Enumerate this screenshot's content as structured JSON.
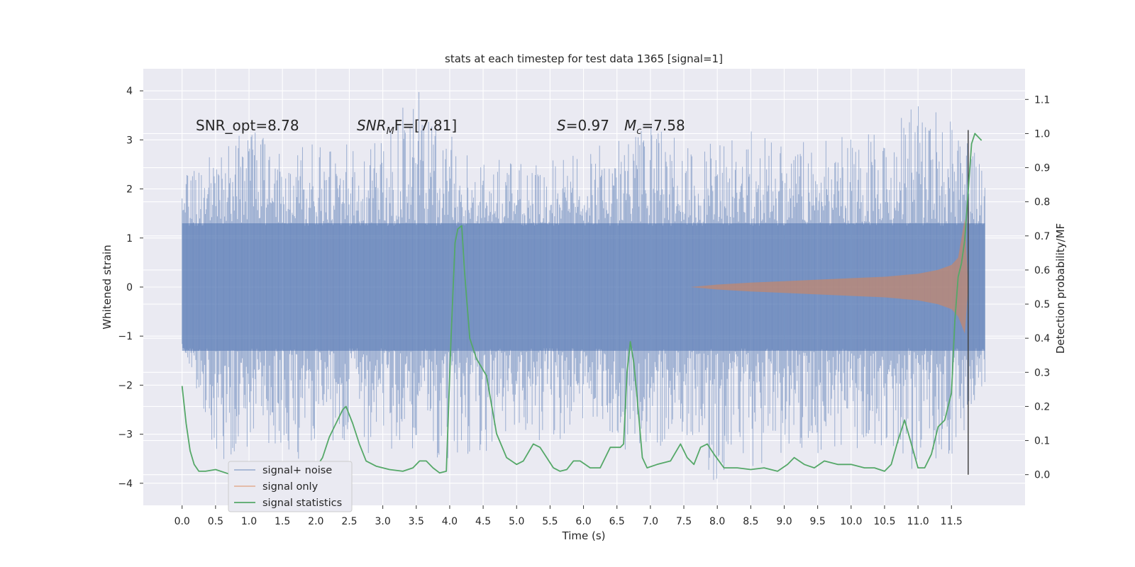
{
  "chart_data": {
    "type": "line",
    "title": "stats at each timestep for test data 1365 [signal=1]",
    "xlabel": "Time (s)",
    "ylabel": "Whitened strain",
    "ylabel_right": "Detection probability/MF",
    "xlim": [
      -0.58,
      12.6
    ],
    "ylim": [
      -4.45,
      4.45
    ],
    "ylim_right": [
      -0.09,
      1.19
    ],
    "x_ticks": [
      "0.0",
      "0.5",
      "1.0",
      "1.5",
      "2.0",
      "2.5",
      "3.0",
      "3.5",
      "4.0",
      "4.5",
      "5.0",
      "5.5",
      "6.0",
      "6.5",
      "7.0",
      "7.5",
      "8.0",
      "8.5",
      "9.0",
      "9.5",
      "10.0",
      "10.5",
      "11.0",
      "11.5"
    ],
    "y_ticks": [
      "4",
      "3",
      "2",
      "1",
      "0",
      "−1",
      "−2",
      "−3",
      "−4"
    ],
    "y_ticks_right": [
      "1.1",
      "1.0",
      "0.9",
      "0.8",
      "0.7",
      "0.6",
      "0.5",
      "0.4",
      "0.3",
      "0.2",
      "0.1",
      "0.0"
    ],
    "grid": true,
    "legend_position": "bottom-left",
    "annotations": {
      "snr_opt": "SNR_opt=8.78",
      "snr_mf_main": "SNR",
      "snr_mf_sub": "M",
      "snr_mf_tail": "F=[7.81]",
      "s_label": "S",
      "s_value": "=0.97",
      "mc_main": "M",
      "mc_sub": "c",
      "mc_value": "=7.58"
    },
    "detection_time_marker": 11.75,
    "series": [
      {
        "name": "signal+ noise",
        "color": "#4c72b0",
        "envelope_x": [
          0,
          0.5,
          1,
          1.5,
          2,
          2.5,
          3,
          3.5,
          4,
          4.5,
          5,
          5.5,
          6,
          6.5,
          7,
          7.5,
          8,
          8.5,
          9,
          9.5,
          10,
          10.5,
          11,
          11.5,
          12
        ],
        "envelope_upper": [
          2.4,
          2.8,
          3.3,
          2.7,
          3.0,
          2.9,
          3.1,
          4.1,
          3.3,
          2.6,
          2.6,
          2.6,
          2.8,
          3.0,
          3.4,
          2.9,
          3.0,
          3.2,
          2.9,
          3.3,
          3.1,
          3.2,
          3.8,
          3.5,
          2.5
        ],
        "envelope_lower": [
          -1.1,
          -3.6,
          -3.3,
          -3.7,
          -3.3,
          -3.2,
          -3.6,
          -3.3,
          -3.6,
          -3.5,
          -3.1,
          -3.2,
          -3.1,
          -3.4,
          -3.3,
          -3.1,
          -4.1,
          -3.7,
          -3.4,
          -3.4,
          -3.3,
          -3.4,
          -3.9,
          -3.5,
          -2.0
        ]
      },
      {
        "name": "signal only",
        "color": "#dd8452",
        "x": [
          7.6,
          8.0,
          8.5,
          9.0,
          9.5,
          10.0,
          10.5,
          11.0,
          11.3,
          11.5,
          11.6,
          11.7,
          11.75,
          12.0
        ],
        "upper": [
          0.0,
          0.05,
          0.09,
          0.12,
          0.15,
          0.18,
          0.21,
          0.27,
          0.35,
          0.45,
          0.6,
          1.4,
          0.0,
          0.0
        ],
        "lower": [
          0.0,
          -0.05,
          -0.09,
          -0.12,
          -0.15,
          -0.18,
          -0.21,
          -0.27,
          -0.35,
          -0.45,
          -0.6,
          -0.95,
          0.0,
          0.0
        ]
      },
      {
        "name": "signal statistics",
        "color": "#55a868",
        "x": [
          0.0,
          0.06,
          0.12,
          0.18,
          0.25,
          0.35,
          0.5,
          0.7,
          0.9,
          1.1,
          1.3,
          1.5,
          1.7,
          1.9,
          2.0,
          2.1,
          2.2,
          2.3,
          2.4,
          2.45,
          2.55,
          2.65,
          2.75,
          2.9,
          3.1,
          3.3,
          3.45,
          3.55,
          3.65,
          3.75,
          3.85,
          3.95,
          4.02,
          4.08,
          4.12,
          4.18,
          4.22,
          4.3,
          4.4,
          4.55,
          4.7,
          4.85,
          5.0,
          5.1,
          5.25,
          5.35,
          5.45,
          5.55,
          5.65,
          5.75,
          5.85,
          5.95,
          6.1,
          6.25,
          6.4,
          6.5,
          6.55,
          6.6,
          6.65,
          6.7,
          6.75,
          6.8,
          6.88,
          6.95,
          7.1,
          7.3,
          7.45,
          7.55,
          7.65,
          7.75,
          7.85,
          7.95,
          8.1,
          8.3,
          8.5,
          8.7,
          8.9,
          9.05,
          9.15,
          9.3,
          9.45,
          9.6,
          9.8,
          10.0,
          10.2,
          10.35,
          10.5,
          10.6,
          10.7,
          10.8,
          10.9,
          11.0,
          11.1,
          11.2,
          11.3,
          11.4,
          11.5,
          11.55,
          11.6,
          11.65,
          11.7,
          11.75,
          11.8,
          11.85,
          11.9,
          11.95
        ],
        "values": [
          0.26,
          0.15,
          0.07,
          0.03,
          0.01,
          0.01,
          0.015,
          0.002,
          0.0,
          0.005,
          0.008,
          0.01,
          0.02,
          0.01,
          0.02,
          0.05,
          0.11,
          0.15,
          0.19,
          0.2,
          0.15,
          0.09,
          0.04,
          0.025,
          0.015,
          0.01,
          0.02,
          0.04,
          0.04,
          0.02,
          0.005,
          0.01,
          0.4,
          0.68,
          0.72,
          0.73,
          0.6,
          0.4,
          0.34,
          0.29,
          0.12,
          0.05,
          0.03,
          0.04,
          0.09,
          0.08,
          0.05,
          0.02,
          0.01,
          0.015,
          0.04,
          0.04,
          0.02,
          0.02,
          0.08,
          0.08,
          0.08,
          0.09,
          0.3,
          0.39,
          0.33,
          0.23,
          0.05,
          0.02,
          0.03,
          0.04,
          0.09,
          0.05,
          0.03,
          0.08,
          0.09,
          0.06,
          0.02,
          0.02,
          0.015,
          0.02,
          0.01,
          0.03,
          0.05,
          0.03,
          0.02,
          0.04,
          0.03,
          0.03,
          0.02,
          0.02,
          0.01,
          0.03,
          0.1,
          0.16,
          0.09,
          0.02,
          0.02,
          0.06,
          0.14,
          0.16,
          0.24,
          0.45,
          0.58,
          0.62,
          0.69,
          0.83,
          0.97,
          1.0,
          0.99,
          0.98
        ]
      }
    ]
  }
}
